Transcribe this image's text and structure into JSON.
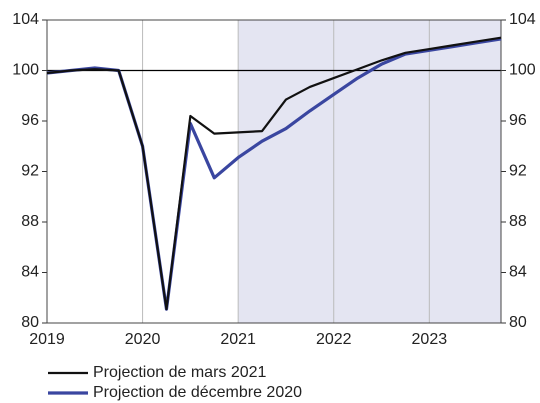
{
  "chart_data": {
    "type": "line",
    "x": [
      2019,
      2019.25,
      2019.5,
      2019.75,
      2020,
      2020.25,
      2020.5,
      2020.75,
      2021,
      2021.25,
      2021.5,
      2021.75,
      2022,
      2022.25,
      2022.5,
      2022.75,
      2023,
      2023.25,
      2023.5,
      2023.75
    ],
    "series": [
      {
        "name": "Projection de mars 2021",
        "color": "#111111",
        "values": [
          99.8,
          100.0,
          100.1,
          100.0,
          94.0,
          81.1,
          96.4,
          95.0,
          95.1,
          95.2,
          97.7,
          98.7,
          99.4,
          100.1,
          100.8,
          101.4,
          101.7,
          102.0,
          102.3,
          102.6
        ]
      },
      {
        "name": "Projection de décembre 2020",
        "color": "#3a46a0",
        "values": [
          99.8,
          100.0,
          100.2,
          100.0,
          94.0,
          81.1,
          95.8,
          91.5,
          93.1,
          94.4,
          95.4,
          96.8,
          98.1,
          99.4,
          100.5,
          101.3,
          101.6,
          101.9,
          102.2,
          102.5
        ]
      }
    ],
    "xlim": [
      2019,
      2023.75
    ],
    "xticks": [
      2019,
      2020,
      2021,
      2022,
      2023
    ],
    "ylim": [
      80,
      104
    ],
    "yticks": [
      80,
      84,
      88,
      92,
      96,
      100,
      104
    ],
    "reference_line": 100,
    "shaded_from": 2021,
    "shade_color": "#e4e5f2",
    "grid": true,
    "legend": "bottom-left"
  }
}
